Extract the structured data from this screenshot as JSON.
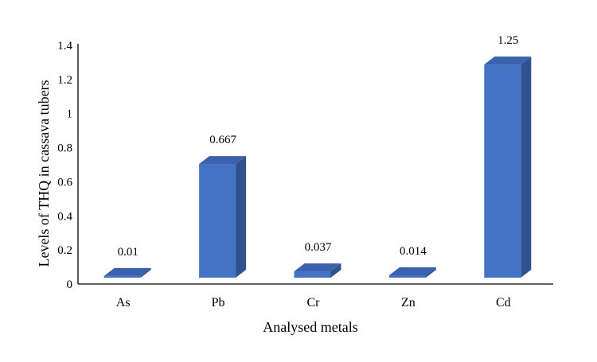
{
  "chart_data": {
    "type": "bar",
    "title": "",
    "xlabel": "Analysed metals",
    "ylabel": "Levels of THQ in cassava tubers",
    "categories": [
      "As",
      "Pb",
      "Cr",
      "Zn",
      "Cd"
    ],
    "values": [
      0.01,
      0.667,
      0.037,
      0.014,
      1.25
    ],
    "data_labels": [
      "0.01",
      "0.667",
      "0.037",
      "0.014",
      "1.25"
    ],
    "ylim": [
      0,
      1.4
    ],
    "yticks": [
      "0",
      "0.2",
      "0.4",
      "0.6",
      "0.8",
      "1",
      "1.2",
      "1.4"
    ],
    "grid": false,
    "legend": "none",
    "bar_style": "3d",
    "colors": {
      "front": "#4472C4",
      "side": "#2F528F",
      "top": "#3A62AD"
    }
  }
}
